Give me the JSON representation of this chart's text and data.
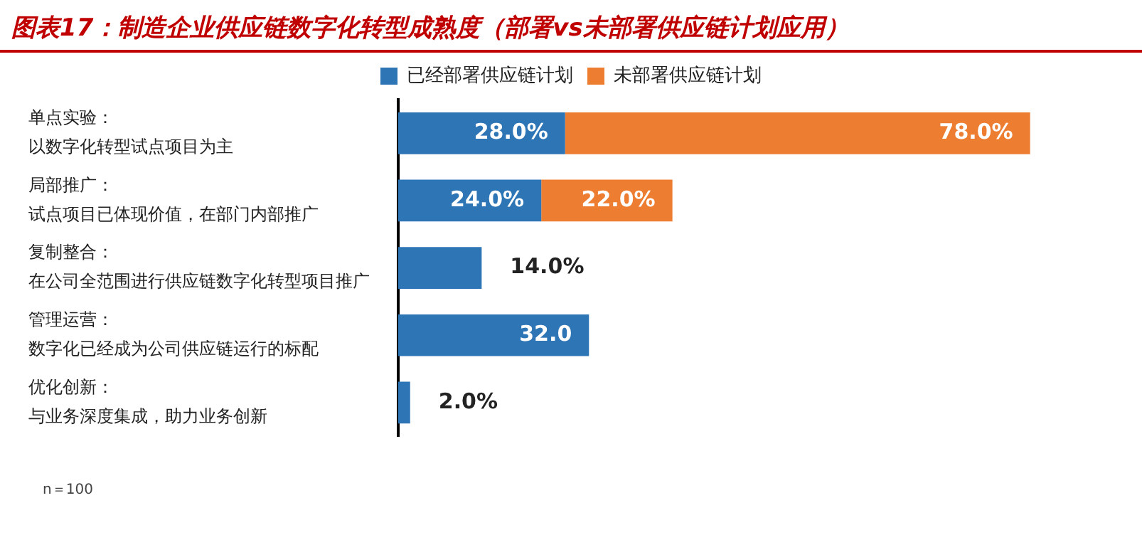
{
  "chart_data": {
    "type": "bar",
    "orientation": "horizontal",
    "stacked": true,
    "title": "图表17：制造企业供应链数字化转型成熟度（部署vs未部署供应链计划应用）",
    "categories": [
      "单点实验：以数字化转型试点项目为主",
      "局部推广：试点项目已体现价值，在部门内部推广",
      "复制整合：在公司全范围进行供应链数字化转型项目推广",
      "管理运营：数字化已经成为公司供应链运行的标配",
      "优化创新：与业务深度集成，助力业务创新"
    ],
    "series": [
      {
        "name": "已经部署供应链计划",
        "color": "#2e75b6",
        "values": [
          28.0,
          24.0,
          14.0,
          32.0,
          2.0
        ],
        "value_labels": [
          "28.0%",
          "24.0%",
          "14.0%",
          "32.0",
          "2.0%"
        ]
      },
      {
        "name": "未部署供应链计划",
        "color": "#ed7d31",
        "values": [
          78.0,
          22.0,
          null,
          null,
          null
        ],
        "value_labels": [
          "78.0%",
          "22.0%",
          null,
          null,
          null
        ]
      }
    ],
    "legend": "top",
    "tick_labels": "y",
    "annotations": [
      "n＝100"
    ]
  }
}
